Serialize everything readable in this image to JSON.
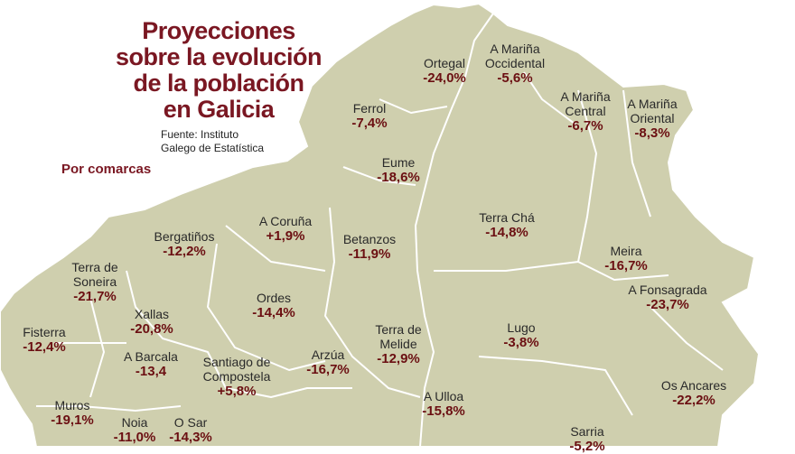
{
  "title_lines": [
    "Proyecciones",
    "sobre la evolución",
    "de la población",
    "en Galicia"
  ],
  "source_lines": [
    "Fuente: Instituto",
    "Galego de Estatística"
  ],
  "subtitle": "Por comarcas",
  "colors": {
    "land": "#cfcfae",
    "border": "#ffffff",
    "title": "#7a1722",
    "value": "#6b0f12"
  },
  "comarcas": [
    {
      "name": "Ortegal",
      "value": "-24,0%"
    },
    {
      "name": "A Mariña\nOccidental",
      "value": "-5,6%"
    },
    {
      "name": "Ferrol",
      "value": "-7,4%"
    },
    {
      "name": "A Mariña\nCentral",
      "value": "-6,7%"
    },
    {
      "name": "A Mariña\nOriental",
      "value": "-8,3%"
    },
    {
      "name": "Eume",
      "value": "-18,6%"
    },
    {
      "name": "A Coruña",
      "value": "+1,9%"
    },
    {
      "name": "Bergatiños",
      "value": "-12,2%"
    },
    {
      "name": "Betanzos",
      "value": "-11,9%"
    },
    {
      "name": "Terra Chá",
      "value": "-14,8%"
    },
    {
      "name": "Meira",
      "value": "-16,7%"
    },
    {
      "name": "Terra de\nSoneira",
      "value": "-21,7%"
    },
    {
      "name": "A Fonsagrada",
      "value": "-23,7%"
    },
    {
      "name": "Ordes",
      "value": "-14,4%"
    },
    {
      "name": "Xallas",
      "value": "-20,8%"
    },
    {
      "name": "Fisterra",
      "value": "-12,4%"
    },
    {
      "name": "Lugo",
      "value": "-3,8%"
    },
    {
      "name": "Terra de\nMelide",
      "value": "-12,9%"
    },
    {
      "name": "A Barcala",
      "value": "-13,4"
    },
    {
      "name": "Santiago de\nCompostela",
      "value": "+5,8%"
    },
    {
      "name": "Arzúa",
      "value": "-16,7%"
    },
    {
      "name": "Os Ancares",
      "value": "-22,2%"
    },
    {
      "name": "A Ulloa",
      "value": "-15,8%"
    },
    {
      "name": "Muros",
      "value": "-19,1%"
    },
    {
      "name": "Noia",
      "value": "-11,0%"
    },
    {
      "name": "O Sar",
      "value": "-14,3%"
    },
    {
      "name": "Sarria",
      "value": "-5,2%"
    }
  ]
}
